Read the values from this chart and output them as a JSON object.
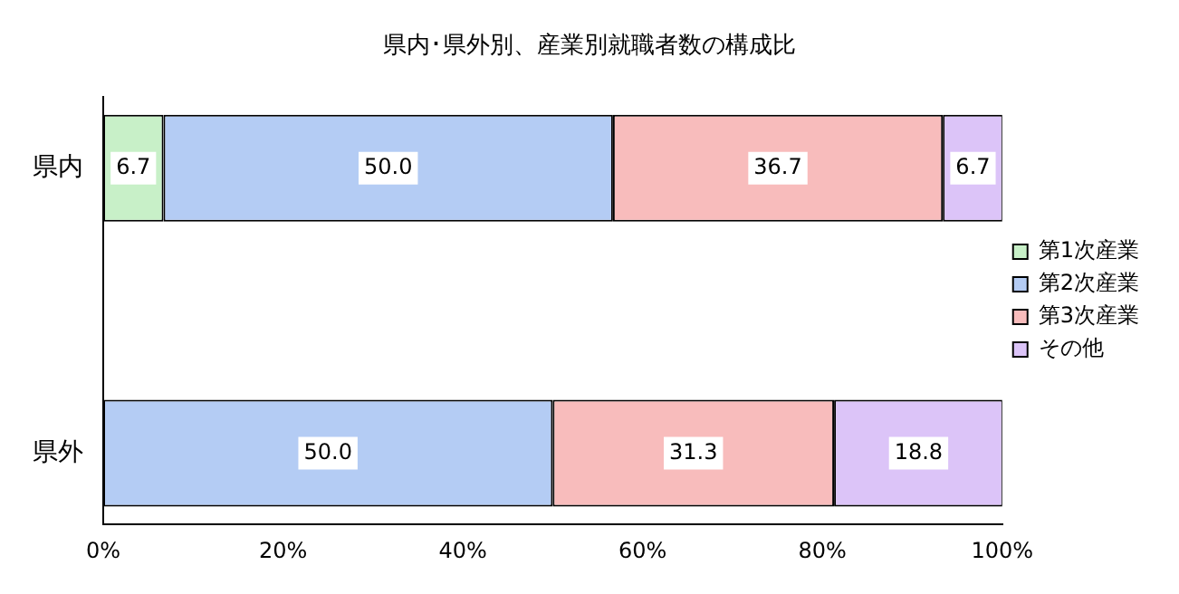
{
  "chart_data": {
    "type": "bar",
    "orientation": "horizontal",
    "stacked": true,
    "title": "県内･県外別、産業別就職者数の構成比",
    "categories": [
      "県内",
      null,
      "県外"
    ],
    "series": [
      {
        "name": "第1次産業",
        "color": "#c8f0c8",
        "values": [
          6.7,
          null,
          null
        ],
        "value_labels": [
          "6.7",
          null,
          null
        ]
      },
      {
        "name": "第2次産業",
        "color": "#b4ccf4",
        "values": [
          50.0,
          null,
          50.0
        ],
        "value_labels": [
          "50.0",
          null,
          "50.0"
        ]
      },
      {
        "name": "第3次産業",
        "color": "#f8bcbc",
        "values": [
          36.7,
          null,
          31.3
        ],
        "value_labels": [
          "36.7",
          null,
          "31.3"
        ]
      },
      {
        "name": "その他",
        "color": "#dcc4f8",
        "values": [
          6.7,
          null,
          18.8
        ],
        "value_labels": [
          "6.7",
          null,
          "18.8"
        ]
      }
    ],
    "xlim": [
      0,
      100
    ],
    "xticks": [
      {
        "value": 0,
        "label": "0%"
      },
      {
        "value": 20,
        "label": "20%"
      },
      {
        "value": 40,
        "label": "40%"
      },
      {
        "value": 60,
        "label": "60%"
      },
      {
        "value": 80,
        "label": "80%"
      },
      {
        "value": 100,
        "label": "100%"
      }
    ],
    "grid": false,
    "legend": "right"
  }
}
